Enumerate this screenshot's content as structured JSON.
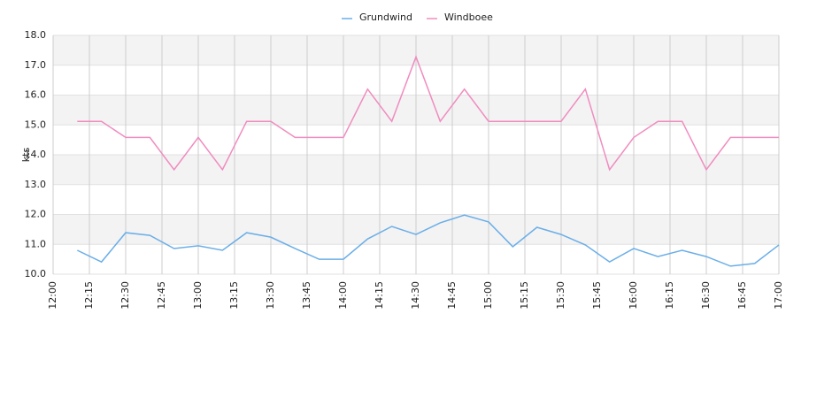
{
  "chart_data": {
    "type": "line",
    "ylabel": "kts",
    "x": [
      "12:10",
      "12:20",
      "12:30",
      "12:40",
      "12:50",
      "13:00",
      "13:10",
      "13:20",
      "13:30",
      "13:40",
      "13:50",
      "14:00",
      "14:10",
      "14:20",
      "14:30",
      "14:40",
      "14:50",
      "15:00",
      "15:10",
      "15:20",
      "15:30",
      "15:40",
      "15:50",
      "16:00",
      "16:10",
      "16:20",
      "16:30",
      "16:40",
      "16:50",
      "17:00"
    ],
    "series": [
      {
        "name": "Grundwind",
        "color": "#6aaee8",
        "values": [
          10.8,
          10.41,
          11.39,
          11.3,
          10.86,
          10.95,
          10.8,
          11.39,
          11.24,
          10.86,
          10.5,
          10.5,
          11.18,
          11.6,
          11.33,
          11.72,
          11.98,
          11.75,
          10.92,
          11.57,
          11.33,
          10.98,
          10.41,
          10.86,
          10.59,
          10.8,
          10.59,
          10.27,
          10.36,
          10.98
        ]
      },
      {
        "name": "Windboee",
        "color": "#f08cc0",
        "values": [
          15.12,
          15.12,
          14.58,
          14.58,
          13.5,
          14.58,
          13.5,
          15.12,
          15.12,
          14.58,
          14.58,
          14.58,
          16.2,
          15.12,
          17.28,
          15.12,
          16.2,
          15.12,
          15.12,
          15.12,
          15.12,
          16.2,
          13.5,
          14.58,
          15.12,
          15.12,
          13.5,
          14.58,
          14.58,
          14.58
        ]
      }
    ],
    "xlim": [
      "12:00",
      "17:00"
    ],
    "xticks": [
      "12:00",
      "12:15",
      "12:30",
      "12:45",
      "13:00",
      "13:15",
      "13:30",
      "13:45",
      "14:00",
      "14:15",
      "14:30",
      "14:45",
      "15:00",
      "15:15",
      "15:30",
      "15:45",
      "16:00",
      "16:15",
      "16:30",
      "16:45",
      "17:00"
    ],
    "ylim": [
      10,
      18
    ],
    "yticks": [
      {
        "value": 10,
        "label": "10.0"
      },
      {
        "value": 11,
        "label": "11.0"
      },
      {
        "value": 12,
        "label": "12.0"
      },
      {
        "value": 13,
        "label": "13.0"
      },
      {
        "value": 14,
        "label": "14.0"
      },
      {
        "value": 15,
        "label": "15.0"
      },
      {
        "value": 16,
        "label": "16.0"
      },
      {
        "value": 17,
        "label": "17.0"
      },
      {
        "value": 18,
        "label": "18.0"
      }
    ],
    "grid": true,
    "banded_grid": true,
    "legend": "top"
  }
}
